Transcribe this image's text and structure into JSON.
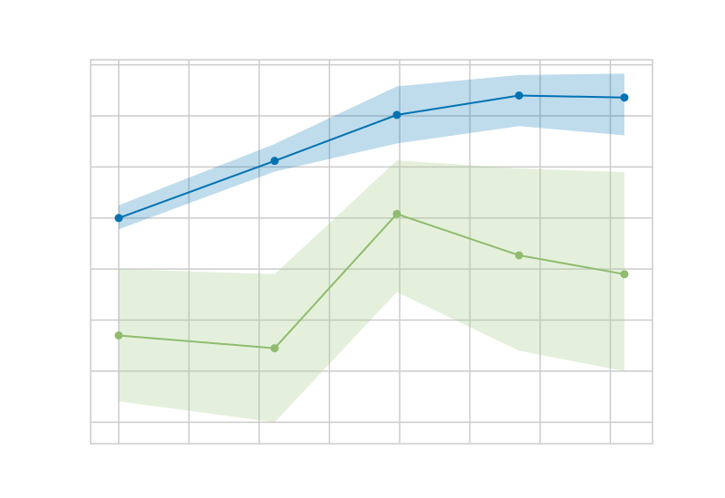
{
  "chart_data": {
    "type": "line",
    "title": "",
    "xlabel": "",
    "ylabel": "",
    "xlim": [
      0.05,
      1.05
    ],
    "ylim": [
      -0.042,
      0.71
    ],
    "grid": true,
    "x": [
      0.1,
      0.3775,
      0.595,
      0.8125,
      1.0
    ],
    "series": [
      {
        "color": "#0072b2",
        "fill_color": "#0072b2",
        "fill_opacity": 0.25,
        "values": [
          0.4,
          0.512,
          0.602,
          0.64,
          0.636
        ],
        "lower": [
          0.378,
          0.491,
          0.546,
          0.58,
          0.562
        ],
        "upper": [
          0.425,
          0.545,
          0.658,
          0.68,
          0.683
        ]
      },
      {
        "color": "#8fbc6e",
        "fill_color": "#a9cc8c",
        "fill_opacity": 0.3,
        "values": [
          0.17,
          0.145,
          0.408,
          0.327,
          0.29
        ],
        "lower": [
          0.041,
          0.0,
          0.255,
          0.14,
          0.1
        ],
        "upper": [
          0.3,
          0.29,
          0.513,
          0.497,
          0.49
        ]
      }
    ]
  }
}
